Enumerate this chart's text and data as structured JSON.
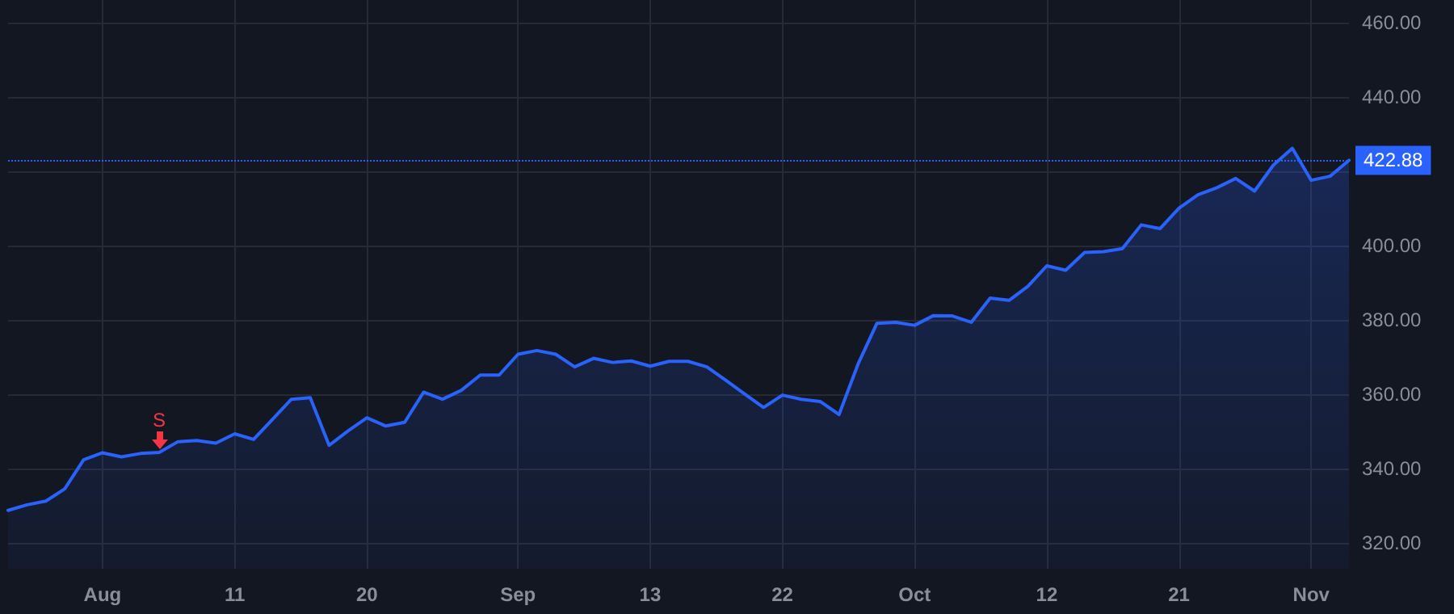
{
  "chart_data": {
    "type": "area",
    "categories": [
      null,
      null,
      null,
      null,
      null,
      "Aug",
      null,
      null,
      null,
      null,
      null,
      null,
      "11",
      null,
      null,
      null,
      null,
      null,
      null,
      "20",
      null,
      null,
      null,
      null,
      null,
      null,
      null,
      "Sep",
      null,
      null,
      null,
      null,
      null,
      null,
      "13",
      null,
      null,
      null,
      null,
      null,
      null,
      "22",
      null,
      null,
      null,
      null,
      null,
      null,
      "Oct",
      null,
      null,
      null,
      null,
      null,
      null,
      "12",
      null,
      null,
      null,
      null,
      null,
      null,
      "21",
      null,
      null,
      null,
      null,
      null,
      null,
      "Nov",
      null,
      null
    ],
    "series": [
      {
        "color": "#2962ff",
        "values": [
          328.7,
          330.2,
          331.2,
          334.5,
          342.3,
          344.2,
          343.1,
          344.0,
          344.3,
          347.2,
          347.5,
          346.8,
          349.3,
          347.8,
          353.2,
          358.6,
          359.0,
          346.2,
          350.1,
          353.6,
          351.4,
          352.4,
          360.5,
          358.6,
          361.0,
          365.1,
          365.1,
          370.7,
          371.7,
          370.7,
          367.3,
          369.6,
          368.5,
          368.9,
          367.5,
          368.8,
          368.8,
          367.3,
          363.7,
          360.0,
          356.4,
          359.7,
          358.6,
          358.0,
          354.5,
          368.0,
          379.0,
          379.3,
          378.5,
          381.1,
          381.0,
          379.3,
          385.8,
          385.2,
          389.0,
          394.5,
          393.3,
          398.1,
          398.3,
          399.1,
          405.5,
          404.5,
          410.0,
          413.6,
          415.5,
          418.0,
          414.6,
          421.6,
          426.1,
          417.5,
          418.6,
          422.88
        ]
      }
    ],
    "ylim": [
      313,
      466
    ],
    "yticks": [
      {
        "value": 320,
        "label": "320.00"
      },
      {
        "value": 340,
        "label": "340.00"
      },
      {
        "value": 360,
        "label": "360.00"
      },
      {
        "value": 380,
        "label": "380.00"
      },
      {
        "value": 400,
        "label": "400.00"
      },
      {
        "value": 420,
        "label": null
      },
      {
        "value": 440,
        "label": "440.00"
      },
      {
        "value": 460,
        "label": "460.00"
      }
    ],
    "ref_lines": [
      {
        "axis": "y",
        "value": 422.88,
        "label": "422.88",
        "color": "#2962ff",
        "line_style": "dotted"
      }
    ],
    "annotations": [
      {
        "text": "S",
        "y": 344.3
      }
    ],
    "grid": true
  }
}
